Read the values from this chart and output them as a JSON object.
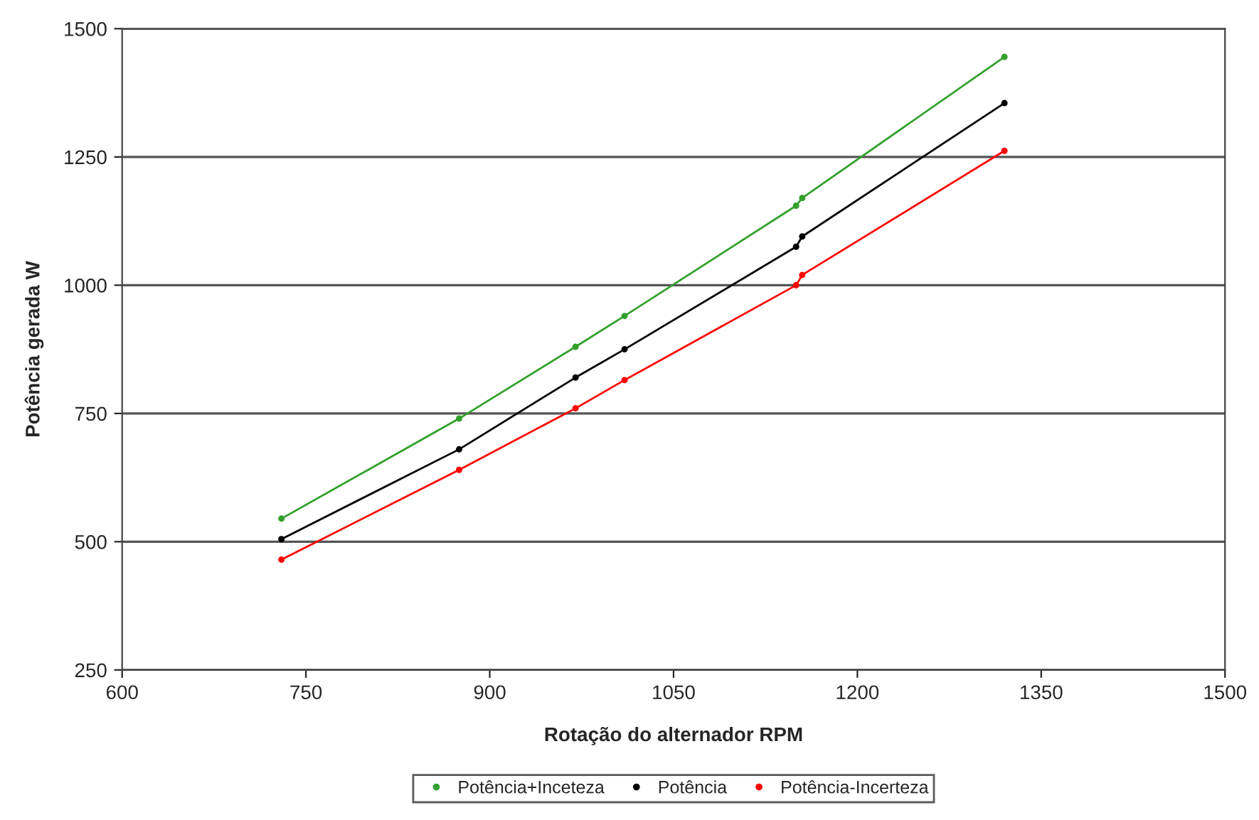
{
  "chart_data": {
    "type": "line",
    "xlabel": "Rotação do alternador RPM",
    "ylabel": "Potência gerada W",
    "xlim": [
      600,
      1500
    ],
    "xticks": [
      600,
      750,
      900,
      1050,
      1200,
      1350,
      1500
    ],
    "ylim": [
      250,
      1500
    ],
    "yticks": [
      250,
      500,
      750,
      1000,
      1250,
      1500
    ],
    "grid": "y",
    "legend": "bottom",
    "marker": "circle",
    "line_style": "solid",
    "series": [
      {
        "name": "Potência+Inceteza",
        "color": "#33a02c",
        "x": [
          730,
          875,
          970,
          1010,
          1150,
          1155,
          1320
        ],
        "values": [
          545,
          740,
          880,
          940,
          1155,
          1170,
          1445
        ]
      },
      {
        "name": "Potência",
        "color": "#000000",
        "x": [
          730,
          875,
          970,
          1010,
          1150,
          1155,
          1320
        ],
        "values": [
          505,
          680,
          820,
          875,
          1075,
          1095,
          1355
        ]
      },
      {
        "name": "Potência-Incerteza",
        "color": "#ff0000",
        "x": [
          730,
          875,
          970,
          1010,
          1150,
          1155,
          1320
        ],
        "values": [
          465,
          640,
          760,
          815,
          1000,
          1020,
          1262
        ]
      }
    ]
  }
}
